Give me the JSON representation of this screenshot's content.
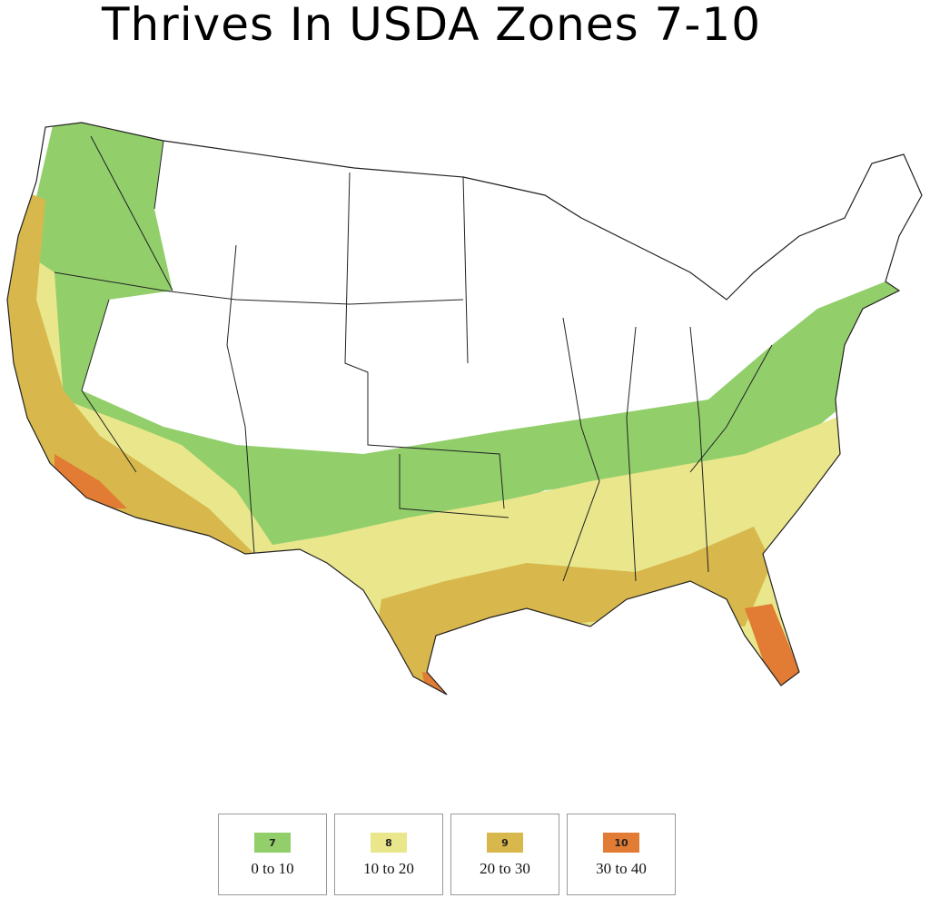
{
  "title": "Thrives In USDA Zones 7-10",
  "legend": [
    {
      "zone": "7",
      "range": "0 to 10",
      "color": "#92cf6b"
    },
    {
      "zone": "8",
      "range": "10 to 20",
      "color": "#e9e68c"
    },
    {
      "zone": "9",
      "range": "20 to 30",
      "color": "#d8b84c"
    },
    {
      "zone": "10",
      "range": "30 to 40",
      "color": "#e27b33"
    }
  ]
}
